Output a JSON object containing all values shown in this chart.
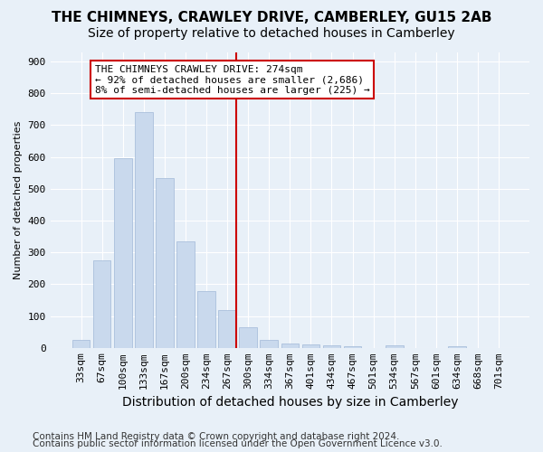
{
  "title1": "THE CHIMNEYS, CRAWLEY DRIVE, CAMBERLEY, GU15 2AB",
  "title2": "Size of property relative to detached houses in Camberley",
  "xlabel": "Distribution of detached houses by size in Camberley",
  "ylabel": "Number of detached properties",
  "bar_labels": [
    "33sqm",
    "67sqm",
    "100sqm",
    "133sqm",
    "167sqm",
    "200sqm",
    "234sqm",
    "267sqm",
    "300sqm",
    "334sqm",
    "367sqm",
    "401sqm",
    "434sqm",
    "467sqm",
    "501sqm",
    "534sqm",
    "567sqm",
    "601sqm",
    "634sqm",
    "668sqm",
    "701sqm"
  ],
  "bar_values": [
    25,
    275,
    595,
    740,
    535,
    335,
    178,
    120,
    65,
    25,
    15,
    12,
    8,
    5,
    0,
    8,
    0,
    0,
    5,
    0,
    0
  ],
  "bar_color": "#c9d9ed",
  "bar_edgecolor": "#a0b8d8",
  "background_color": "#e8f0f8",
  "grid_color": "#ffffff",
  "property_bin_index": 7,
  "vline_color": "#cc0000",
  "annotation_text": "THE CHIMNEYS CRAWLEY DRIVE: 274sqm\n← 92% of detached houses are smaller (2,686)\n8% of semi-detached houses are larger (225) →",
  "annotation_box_color": "#ffffff",
  "annotation_border_color": "#cc0000",
  "ylim": [
    0,
    930
  ],
  "yticks": [
    0,
    100,
    200,
    300,
    400,
    500,
    600,
    700,
    800,
    900
  ],
  "footer1": "Contains HM Land Registry data © Crown copyright and database right 2024.",
  "footer2": "Contains public sector information licensed under the Open Government Licence v3.0.",
  "title1_fontsize": 11,
  "title2_fontsize": 10,
  "xlabel_fontsize": 10,
  "ylabel_fontsize": 8,
  "tick_fontsize": 8,
  "annotation_fontsize": 8,
  "footer_fontsize": 7.5
}
